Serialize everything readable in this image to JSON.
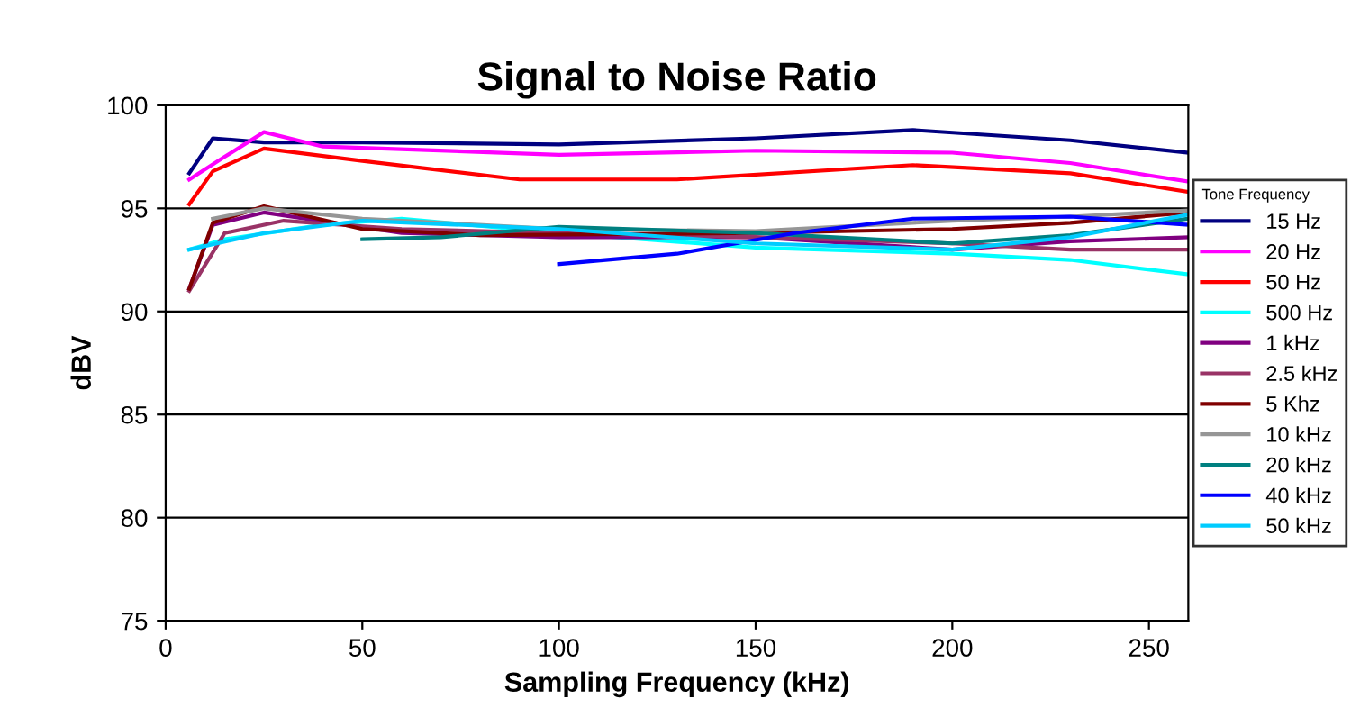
{
  "chart_data": {
    "type": "line",
    "title": "Signal to Noise Ratio",
    "xlabel": "Sampling Frequency (kHz)",
    "ylabel": "dBV",
    "legend_title": "Tone Frequency",
    "xlim": [
      0,
      260
    ],
    "xticks": [
      0,
      50,
      100,
      150,
      200,
      250
    ],
    "ylim": [
      75,
      100
    ],
    "yticks": [
      75,
      80,
      85,
      90,
      95,
      100
    ],
    "grid": "y",
    "legend": "right",
    "marker": "none",
    "line_style": "solid",
    "series": [
      {
        "name": "15 Hz",
        "color": "#000080",
        "x": [
          6,
          12,
          25,
          50,
          100,
          150,
          190,
          230,
          260
        ],
        "values": [
          96.7,
          98.4,
          98.2,
          98.2,
          98.1,
          98.4,
          98.8,
          98.3,
          97.7
        ]
      },
      {
        "name": "20 Hz",
        "color": "#ff00ff",
        "x": [
          6,
          15,
          25,
          40,
          100,
          150,
          200,
          230,
          260
        ],
        "values": [
          96.4,
          97.5,
          98.7,
          98.0,
          97.6,
          97.8,
          97.7,
          97.2,
          96.3
        ]
      },
      {
        "name": "50 Hz",
        "color": "#ff0000",
        "x": [
          6,
          12,
          25,
          50,
          90,
          130,
          190,
          230,
          260
        ],
        "values": [
          95.2,
          96.8,
          97.9,
          97.3,
          96.4,
          96.4,
          97.1,
          96.7,
          95.8
        ]
      },
      {
        "name": "500 Hz",
        "color": "#00ffff",
        "x": [
          6,
          15,
          40,
          60,
          100,
          150,
          200,
          230,
          260
        ],
        "values": [
          93.0,
          93.5,
          94.2,
          94.5,
          93.8,
          93.1,
          92.8,
          92.5,
          91.8
        ]
      },
      {
        "name": "1 kHz",
        "color": "#800080",
        "x": [
          6,
          12,
          25,
          60,
          100,
          150,
          200,
          230,
          260
        ],
        "values": [
          91.1,
          94.2,
          94.8,
          93.8,
          93.6,
          93.6,
          93.0,
          93.4,
          93.6
        ]
      },
      {
        "name": "2.5 kHz",
        "color": "#993366",
        "x": [
          6,
          15,
          30,
          60,
          100,
          150,
          200,
          230,
          260
        ],
        "values": [
          91.0,
          93.8,
          94.4,
          94.0,
          93.8,
          93.6,
          93.3,
          93.0,
          93.0
        ]
      },
      {
        "name": "5 Khz",
        "color": "#800000",
        "x": [
          6,
          12,
          25,
          50,
          80,
          150,
          200,
          230,
          260
        ],
        "values": [
          91.1,
          94.3,
          95.1,
          94.0,
          93.7,
          93.8,
          94.0,
          94.3,
          94.8
        ]
      },
      {
        "name": "10 kHz",
        "color": "#969696",
        "x": [
          12,
          25,
          50,
          100,
          150,
          200,
          230,
          260
        ],
        "values": [
          94.5,
          95.0,
          94.5,
          94.0,
          93.9,
          94.4,
          94.6,
          94.9
        ]
      },
      {
        "name": "20 kHz",
        "color": "#008080",
        "x": [
          50,
          70,
          100,
          150,
          200,
          230,
          260
        ],
        "values": [
          93.5,
          93.6,
          94.1,
          93.8,
          93.3,
          93.7,
          94.5
        ]
      },
      {
        "name": "40 kHz",
        "color": "#0000ff",
        "x": [
          100,
          130,
          160,
          190,
          230,
          260
        ],
        "values": [
          92.3,
          92.8,
          93.8,
          94.5,
          94.6,
          94.2
        ]
      },
      {
        "name": "50 kHz",
        "color": "#00ccff",
        "x": [
          6,
          25,
          50,
          100,
          150,
          200,
          230,
          260
        ],
        "values": [
          93.0,
          93.8,
          94.4,
          94.0,
          93.3,
          93.0,
          93.6,
          94.7
        ]
      }
    ]
  }
}
